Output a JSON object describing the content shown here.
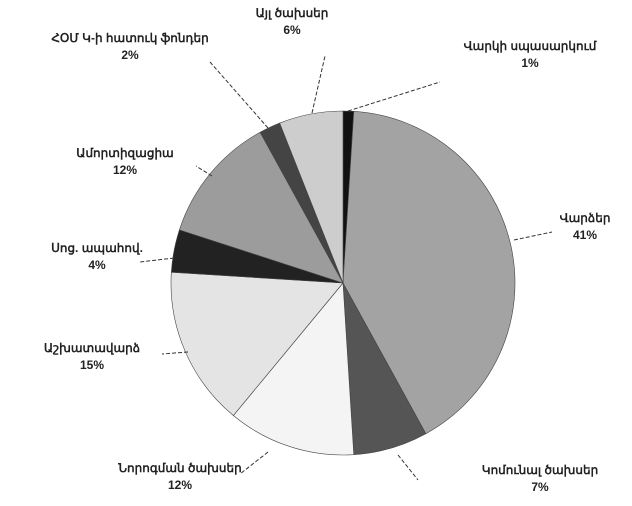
{
  "chart_data": {
    "type": "pie",
    "categories": [
      "Վարկի սպասարկում",
      "Վարձեր",
      "Կոմունալ ծախսեր",
      "Նորոգման ծախսեր",
      "Աշխատավարձ",
      "Սոց. ապահով.",
      "Ամորտիզացիա",
      "ՀՕՄ Կ-ի հատուկ ֆոնդեր",
      "Այլ ծախսեր"
    ],
    "values": [
      1,
      41,
      7,
      12,
      15,
      4,
      12,
      2,
      6
    ],
    "value_labels": [
      "1%",
      "41%",
      "7%",
      "12%",
      "15%",
      "4%",
      "12%",
      "2%",
      "6%"
    ],
    "colors": [
      "#111111",
      "#a3a3a3",
      "#555555",
      "#f4f4f4",
      "#e4e4e4",
      "#222222",
      "#9c9c9c",
      "#444444",
      "#cdcdcd"
    ]
  }
}
